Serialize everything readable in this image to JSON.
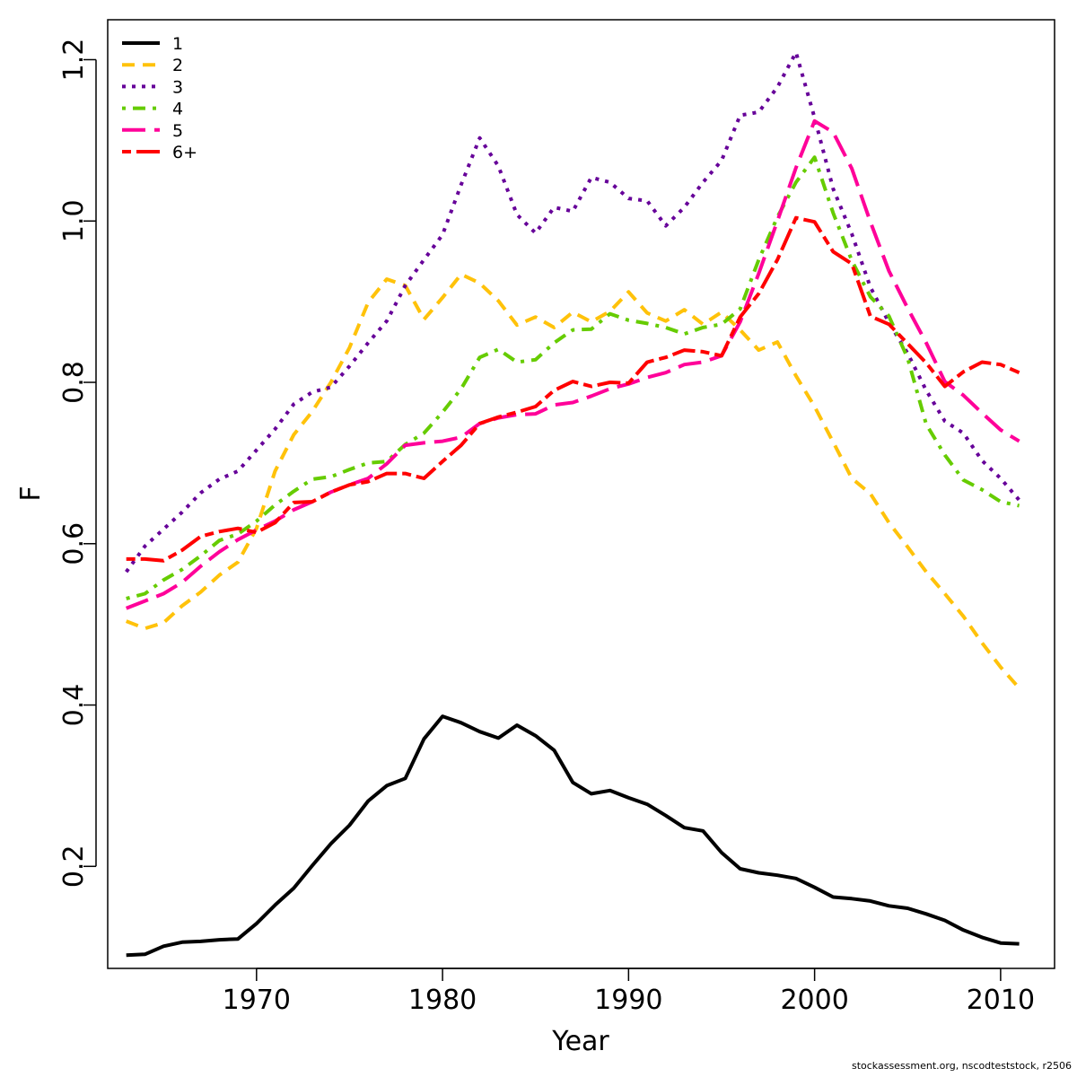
{
  "chart_data": {
    "type": "line",
    "xlabel": "Year",
    "ylabel": "F",
    "xlim": [
      1962.0,
      2012.9
    ],
    "ylim": [
      0.0735,
      1.2495
    ],
    "x_ticks": [
      1970,
      1980,
      1990,
      2000,
      2010
    ],
    "y_ticks": [
      0.2,
      0.4,
      0.6,
      0.8,
      1.0,
      1.2
    ],
    "x_tick_labels": [
      "1970",
      "1980",
      "1990",
      "2000",
      "2010"
    ],
    "y_tick_labels": [
      "0.2",
      "0.4",
      "0.6",
      "0.8",
      "1.0",
      "1.2"
    ],
    "legend_position": "top-left",
    "grid": false,
    "x": [
      1963,
      1964,
      1965,
      1966,
      1967,
      1968,
      1969,
      1970,
      1971,
      1972,
      1973,
      1974,
      1975,
      1976,
      1977,
      1978,
      1979,
      1980,
      1981,
      1982,
      1983,
      1984,
      1985,
      1986,
      1987,
      1988,
      1989,
      1990,
      1991,
      1992,
      1993,
      1994,
      1995,
      1996,
      1997,
      1998,
      1999,
      2000,
      2001,
      2002,
      2003,
      2004,
      2005,
      2006,
      2007,
      2008,
      2009,
      2010,
      2011
    ],
    "series": [
      {
        "name": "1",
        "color": "#000000",
        "dash": "solid",
        "values": [
          0.09,
          0.091,
          0.101,
          0.106,
          0.107,
          0.109,
          0.11,
          0.129,
          0.152,
          0.173,
          0.201,
          0.228,
          0.251,
          0.281,
          0.3,
          0.309,
          0.358,
          0.386,
          0.378,
          0.367,
          0.359,
          0.375,
          0.362,
          0.344,
          0.304,
          0.29,
          0.294,
          0.285,
          0.277,
          0.263,
          0.248,
          0.244,
          0.217,
          0.197,
          0.192,
          0.189,
          0.185,
          0.174,
          0.162,
          0.16,
          0.157,
          0.151,
          0.148,
          0.141,
          0.133,
          0.121,
          0.112,
          0.105,
          0.104
        ]
      },
      {
        "name": "2",
        "color": "#ffc20a",
        "dash": "dashed",
        "values": [
          0.504,
          0.495,
          0.502,
          0.523,
          0.54,
          0.561,
          0.577,
          0.619,
          0.69,
          0.735,
          0.764,
          0.8,
          0.843,
          0.899,
          0.928,
          0.92,
          0.878,
          0.905,
          0.934,
          0.923,
          0.901,
          0.871,
          0.881,
          0.868,
          0.887,
          0.875,
          0.888,
          0.912,
          0.886,
          0.876,
          0.89,
          0.872,
          0.887,
          0.865,
          0.84,
          0.85,
          0.808,
          0.77,
          0.726,
          0.681,
          0.662,
          0.626,
          0.596,
          0.565,
          0.538,
          0.51,
          0.477,
          0.447,
          0.421
        ]
      },
      {
        "name": "3",
        "color": "#660099",
        "dash": "dotted",
        "values": [
          0.565,
          0.597,
          0.618,
          0.639,
          0.663,
          0.68,
          0.69,
          0.716,
          0.742,
          0.773,
          0.788,
          0.794,
          0.82,
          0.849,
          0.876,
          0.92,
          0.952,
          0.983,
          1.045,
          1.103,
          1.068,
          1.008,
          0.985,
          1.017,
          1.012,
          1.054,
          1.048,
          1.028,
          1.025,
          0.994,
          1.017,
          1.048,
          1.075,
          1.131,
          1.135,
          1.166,
          1.209,
          1.128,
          1.04,
          0.984,
          0.918,
          0.874,
          0.836,
          0.79,
          0.752,
          0.737,
          0.703,
          0.681,
          0.654
        ]
      },
      {
        "name": "4",
        "color": "#66cc00",
        "dash": "dashdot",
        "values": [
          0.532,
          0.538,
          0.555,
          0.568,
          0.585,
          0.604,
          0.612,
          0.628,
          0.648,
          0.665,
          0.68,
          0.683,
          0.692,
          0.7,
          0.702,
          0.723,
          0.737,
          0.763,
          0.792,
          0.831,
          0.841,
          0.825,
          0.828,
          0.849,
          0.865,
          0.866,
          0.885,
          0.877,
          0.873,
          0.868,
          0.86,
          0.868,
          0.872,
          0.891,
          0.952,
          1.005,
          1.048,
          1.079,
          1.01,
          0.951,
          0.906,
          0.882,
          0.83,
          0.748,
          0.71,
          0.679,
          0.667,
          0.652,
          0.647
        ]
      },
      {
        "name": "5",
        "color": "#ff0099",
        "dash": "longdash",
        "values": [
          0.52,
          0.529,
          0.538,
          0.552,
          0.572,
          0.59,
          0.605,
          0.617,
          0.628,
          0.642,
          0.652,
          0.664,
          0.673,
          0.681,
          0.699,
          0.722,
          0.725,
          0.727,
          0.732,
          0.749,
          0.756,
          0.76,
          0.761,
          0.772,
          0.775,
          0.783,
          0.792,
          0.798,
          0.806,
          0.812,
          0.822,
          0.825,
          0.833,
          0.875,
          0.935,
          1.0,
          1.066,
          1.124,
          1.11,
          1.065,
          0.999,
          0.938,
          0.892,
          0.849,
          0.801,
          0.784,
          0.762,
          0.741,
          0.727
        ]
      },
      {
        "name": "6+",
        "color": "#ff0000",
        "dash": "twodash",
        "values": [
          0.581,
          0.581,
          0.579,
          0.592,
          0.609,
          0.615,
          0.619,
          0.614,
          0.626,
          0.651,
          0.652,
          0.664,
          0.673,
          0.677,
          0.687,
          0.687,
          0.681,
          0.702,
          0.722,
          0.749,
          0.757,
          0.763,
          0.77,
          0.79,
          0.801,
          0.795,
          0.8,
          0.799,
          0.825,
          0.831,
          0.84,
          0.838,
          0.833,
          0.881,
          0.91,
          0.952,
          1.004,
          0.999,
          0.962,
          0.947,
          0.882,
          0.872,
          0.848,
          0.824,
          0.795,
          0.813,
          0.825,
          0.822,
          0.812
        ]
      }
    ]
  },
  "footnote": "stockassessment.org, nscodteststock, r2506"
}
